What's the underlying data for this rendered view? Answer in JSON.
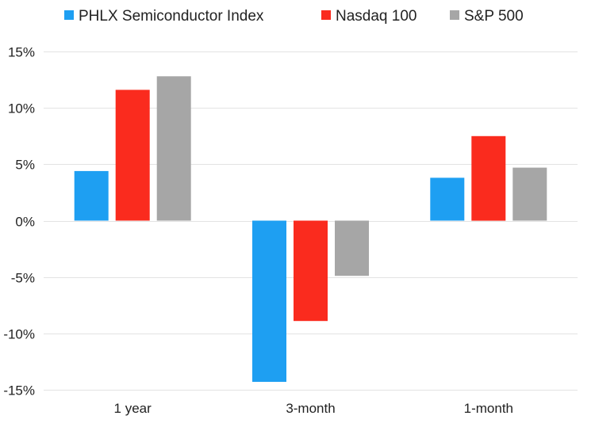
{
  "chart_data": {
    "type": "bar",
    "title": "",
    "xlabel": "",
    "ylabel": "",
    "categories": [
      "1 year",
      "3-month",
      "1-month"
    ],
    "series": [
      {
        "name": "PHLX Semiconductor Index",
        "color": "#1e9ff2",
        "values": [
          4.4,
          -14.3,
          3.8
        ]
      },
      {
        "name": "Nasdaq 100",
        "color": "#fa2b1e",
        "values": [
          11.6,
          -8.9,
          7.5
        ]
      },
      {
        "name": "S&P 500",
        "color": "#a6a6a6",
        "values": [
          12.8,
          -4.9,
          4.7
        ]
      }
    ],
    "ylim": [
      -15,
      15
    ],
    "y_ticks": [
      15,
      10,
      5,
      0,
      -5,
      -10,
      -15
    ],
    "y_tick_labels": [
      "15%",
      "10%",
      "5%",
      "0%",
      "-5%",
      "-10%",
      "-15%"
    ],
    "grid": true,
    "legend_position": "top"
  }
}
